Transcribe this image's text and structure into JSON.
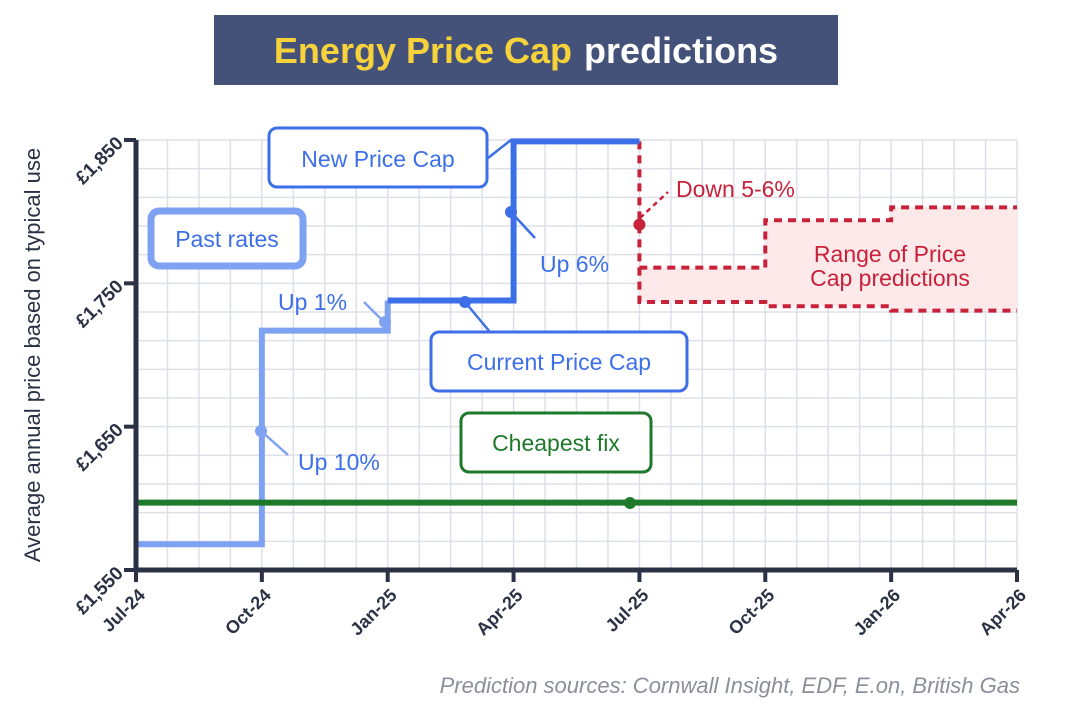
{
  "chart_data": {
    "type": "line",
    "title_highlight": "Energy Price Cap",
    "title_rest": "predictions",
    "ylabel": "Average annual price based on typical use",
    "xlabel": "",
    "x_ticks": [
      "Jul-24",
      "Oct-24",
      "Jan-25",
      "Apr-25",
      "Jul-25",
      "Oct-25",
      "Jan-26",
      "Apr-26"
    ],
    "y_ticks": [
      1550,
      1650,
      1750,
      1850
    ],
    "y_tick_labels": [
      "£1,550",
      "£1,650",
      "£1,750",
      "£1,850"
    ],
    "ylim": [
      1550,
      1850
    ],
    "grid": true,
    "series": [
      {
        "name": "Past rates",
        "color": "#7ea1f2",
        "steps": [
          {
            "x": "Jul-24",
            "y": 1568
          },
          {
            "x": "Oct-24",
            "y": 1717
          },
          {
            "x": "Jan-25",
            "y": 1717
          }
        ]
      },
      {
        "name": "Current Price Cap",
        "color": "#3d6fe8",
        "steps": [
          {
            "x": "Jan-25",
            "y": 1738
          },
          {
            "x": "Apr-25",
            "y": 1738
          }
        ]
      },
      {
        "name": "New Price Cap",
        "color": "#3d6fe8",
        "steps": [
          {
            "x": "Apr-25",
            "y": 1849
          },
          {
            "x": "Jul-25",
            "y": 1849
          }
        ]
      },
      {
        "name": "Cheapest fix",
        "color": "#1e7a2a",
        "value": 1597
      }
    ],
    "prediction_ranges": {
      "name": "Range of Price Cap predictions",
      "color": "#c8213a",
      "fill": "#fde9ea",
      "ranges": [
        {
          "from": "Jul-25",
          "to": "Oct-25",
          "low": 1737,
          "high": 1761
        },
        {
          "from": "Oct-25",
          "to": "Jan-26",
          "low": 1734,
          "high": 1794
        },
        {
          "from": "Jan-26",
          "to": "Apr-26",
          "low": 1731,
          "high": 1803
        }
      ],
      "point": {
        "x": "Jul-25",
        "y": 1791
      }
    },
    "annotations": {
      "past_rates": "Past rates",
      "new_cap": "New Price Cap",
      "current_cap": "Current Price Cap",
      "cheapest_fix": "Cheapest fix",
      "up10": "Up 10%",
      "up1": "Up 1%",
      "up6": "Up 6%",
      "down": "Down 5-6%",
      "range_line1": "Range of Price",
      "range_line2": "Cap predictions"
    },
    "source": "Prediction sources: Cornwall Insight, EDF, E.on, British Gas"
  }
}
